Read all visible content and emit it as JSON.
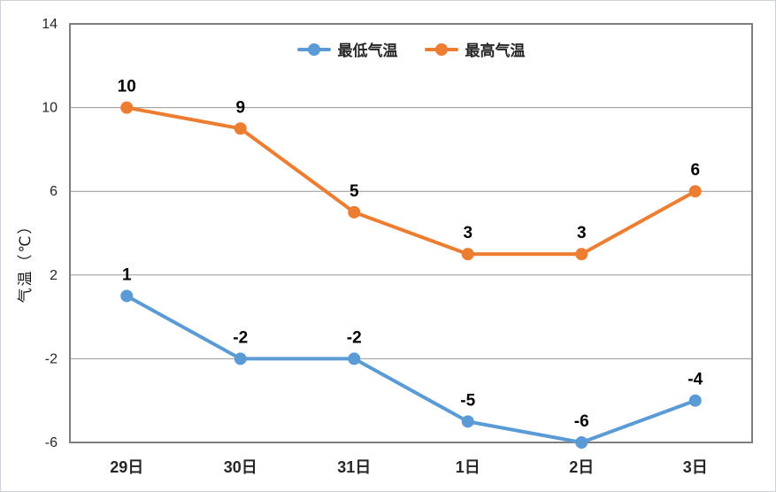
{
  "chart_data": {
    "type": "line",
    "title": "",
    "categories": [
      "29日",
      "30日",
      "31日",
      "1日",
      "2日",
      "3日"
    ],
    "series": [
      {
        "name": "最低气温",
        "color": "#5B9BD5",
        "values": [
          1,
          -2,
          -2,
          -5,
          -6,
          -4
        ]
      },
      {
        "name": "最高气温",
        "color": "#ED7D31",
        "values": [
          10,
          9,
          5,
          3,
          3,
          6
        ]
      }
    ],
    "xlabel": "",
    "ylabel": "气温（℃）",
    "ylim": [
      -6,
      14
    ],
    "yticks": [
      14,
      10,
      6,
      2,
      -2,
      -6
    ],
    "grid": true,
    "marker": "circle",
    "data_labels": true,
    "legend_position": "top-center"
  },
  "colors": {
    "plot_border": "#7f7f7f",
    "gridline": "#969696",
    "tick_text": "#262626",
    "data_label": "#000000",
    "outer_border": "#cdd2d9",
    "background": "#ffffff"
  }
}
